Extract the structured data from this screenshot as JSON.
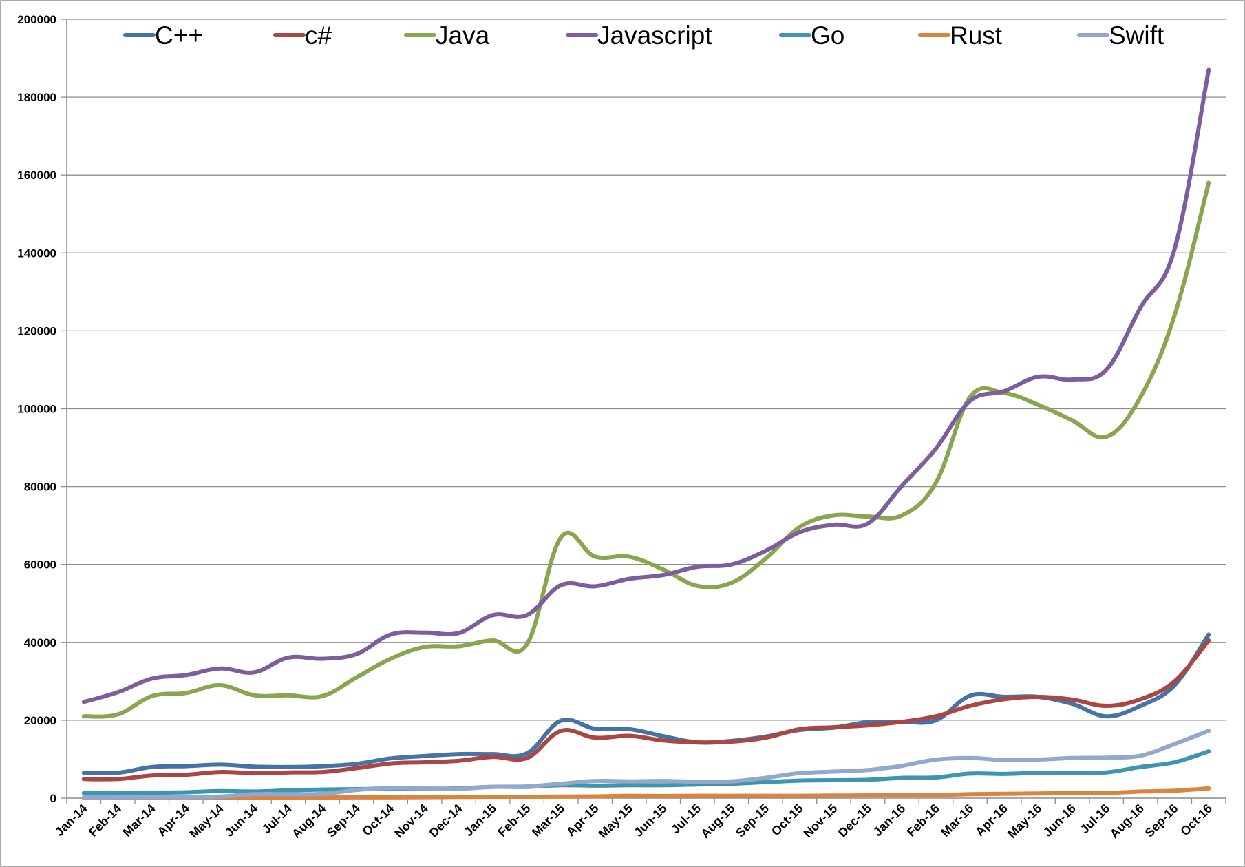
{
  "chart_data": {
    "type": "line",
    "title": "",
    "xlabel": "",
    "ylabel": "",
    "ylim": [
      0,
      200000
    ],
    "yticks": [
      "0",
      "20000",
      "40000",
      "60000",
      "80000",
      "100000",
      "120000",
      "140000",
      "160000",
      "180000",
      "200000"
    ],
    "grid": true,
    "legend_position": "top",
    "categories": [
      "Jan-14",
      "Feb-14",
      "Mar-14",
      "Apr-14",
      "May-14",
      "Jun-14",
      "Jul-14",
      "Aug-14",
      "Sep-14",
      "Oct-14",
      "Nov-14",
      "Dec-14",
      "Jan-15",
      "Feb-15",
      "Mar-15",
      "Apr-15",
      "May-15",
      "Jun-15",
      "Jul-15",
      "Aug-15",
      "Sep-15",
      "Oct-15",
      "Nov-15",
      "Dec-15",
      "Jan-16",
      "Feb-16",
      "Mar-16",
      "Apr-16",
      "May-16",
      "Jun-16",
      "Jul-16",
      "Aug-16",
      "Sep-16",
      "Oct-16"
    ],
    "series": [
      {
        "name": "C++",
        "color": "#4572A7",
        "values": [
          6500,
          6500,
          8000,
          8200,
          8600,
          8100,
          8000,
          8200,
          8800,
          10200,
          10800,
          11300,
          11300,
          11500,
          19900,
          17800,
          17700,
          15900,
          14300,
          14700,
          15800,
          17500,
          18100,
          19500,
          19600,
          20000,
          26300,
          26000,
          26000,
          24200,
          21000,
          23700,
          29000,
          42000
        ]
      },
      {
        "name": "c#",
        "color": "#AA4643",
        "values": [
          4900,
          4900,
          5800,
          6000,
          6700,
          6400,
          6600,
          6700,
          7700,
          8900,
          9200,
          9600,
          10600,
          10300,
          17300,
          15500,
          16000,
          14800,
          14300,
          14500,
          15500,
          17700,
          18200,
          18700,
          19600,
          21000,
          23700,
          25400,
          26000,
          25300,
          23700,
          25400,
          30000,
          40500
        ]
      },
      {
        "name": "Java",
        "color": "#89A54E",
        "values": [
          21000,
          21500,
          26200,
          27000,
          29000,
          26400,
          26400,
          26200,
          31000,
          35800,
          38800,
          39000,
          40500,
          39500,
          67000,
          62000,
          62000,
          58700,
          54500,
          55300,
          61500,
          69600,
          72600,
          72300,
          72600,
          81000,
          103000,
          104000,
          101000,
          97000,
          92800,
          103000,
          124000,
          158000
        ]
      },
      {
        "name": "Javascript",
        "color": "#7E5D9E",
        "values": [
          24700,
          27200,
          30700,
          31600,
          33300,
          32300,
          36100,
          35800,
          37000,
          42000,
          42500,
          42400,
          47000,
          47000,
          54700,
          54400,
          56300,
          57300,
          59400,
          60000,
          63500,
          68300,
          70200,
          70500,
          80200,
          89800,
          102000,
          104500,
          108200,
          107500,
          110000,
          126000,
          141000,
          187000
        ]
      },
      {
        "name": "Go",
        "color": "#3D96AE",
        "values": [
          1300,
          1300,
          1400,
          1500,
          1800,
          1700,
          2000,
          2200,
          2300,
          2400,
          2400,
          2500,
          2900,
          2900,
          3300,
          3200,
          3300,
          3300,
          3500,
          3700,
          4100,
          4500,
          4600,
          4700,
          5200,
          5300,
          6300,
          6200,
          6500,
          6500,
          6600,
          8000,
          9200,
          12000
        ]
      },
      {
        "name": "Rust",
        "color": "#DB843D",
        "values": [
          0,
          0,
          50,
          50,
          80,
          80,
          100,
          150,
          200,
          200,
          250,
          300,
          350,
          350,
          400,
          450,
          600,
          550,
          600,
          600,
          600,
          600,
          650,
          700,
          800,
          800,
          1000,
          1100,
          1200,
          1300,
          1300,
          1700,
          1900,
          2500
        ]
      },
      {
        "name": "Swift",
        "color": "#92A8CD",
        "values": [
          200,
          200,
          250,
          250,
          400,
          1000,
          1000,
          1100,
          2100,
          2600,
          2500,
          2400,
          2900,
          3000,
          3700,
          4400,
          4300,
          4400,
          4200,
          4300,
          5200,
          6400,
          6800,
          7200,
          8300,
          9900,
          10300,
          9800,
          9900,
          10300,
          10400,
          10900,
          13900,
          17300
        ]
      }
    ]
  }
}
